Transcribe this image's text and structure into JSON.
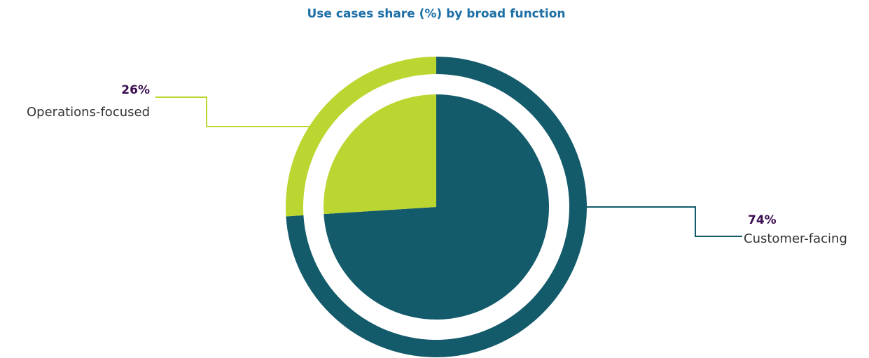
{
  "chart_data": {
    "type": "pie",
    "title": "Use cases share (%) by broad function",
    "categories": [
      "Customer-facing",
      "Operations-focused"
    ],
    "values": [
      74,
      26
    ],
    "value_labels": [
      "74%",
      "26%"
    ],
    "colors": [
      "#135a6a",
      "#bcd631"
    ]
  }
}
